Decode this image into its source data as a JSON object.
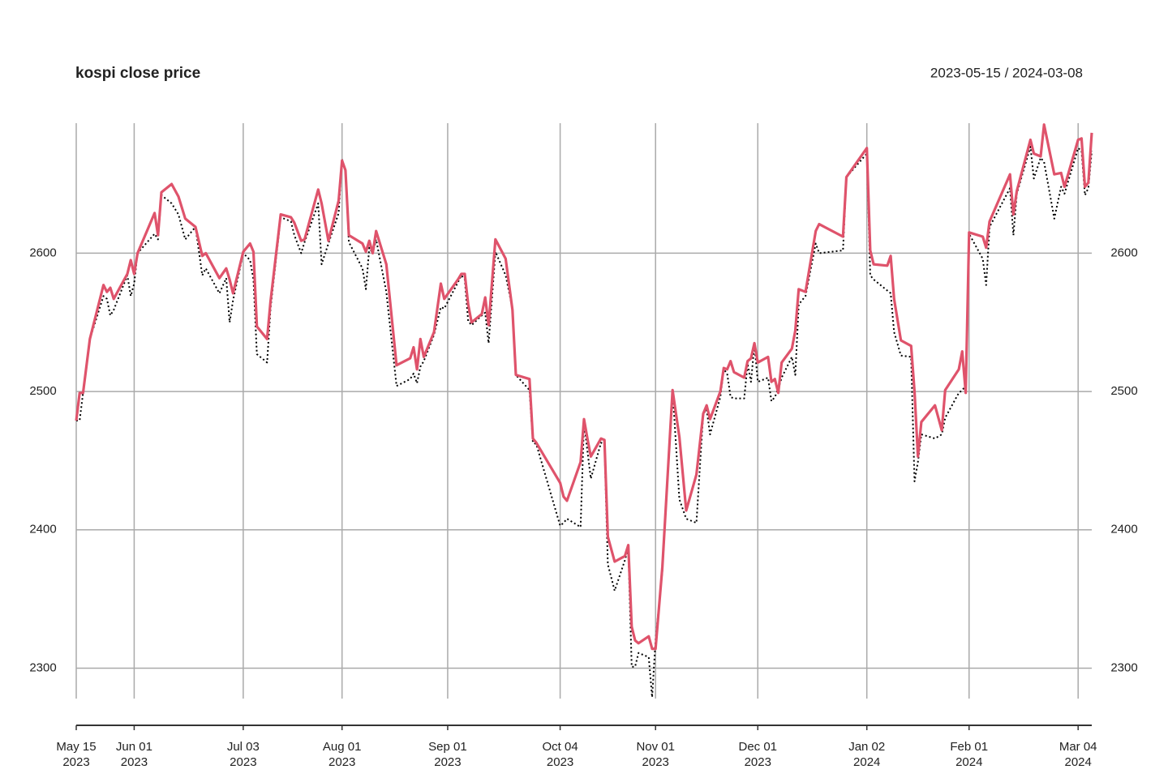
{
  "chart_data": {
    "type": "line",
    "title": "kospi close price",
    "subtitle": "2023-05-15 / 2024-03-08",
    "x": [
      "2023-05-15",
      "2023-05-16",
      "2023-05-17",
      "2023-05-19",
      "2023-05-23",
      "2023-05-24",
      "2023-05-25",
      "2023-05-26",
      "2023-05-30",
      "2023-05-31",
      "2023-06-01",
      "2023-06-02",
      "2023-06-07",
      "2023-06-08",
      "2023-06-09",
      "2023-06-12",
      "2023-06-14",
      "2023-06-16",
      "2023-06-19",
      "2023-06-21",
      "2023-06-22",
      "2023-06-26",
      "2023-06-28",
      "2023-06-29",
      "2023-06-30",
      "2023-07-03",
      "2023-07-05",
      "2023-07-06",
      "2023-07-07",
      "2023-07-10",
      "2023-07-11",
      "2023-07-14",
      "2023-07-17",
      "2023-07-18",
      "2023-07-20",
      "2023-07-21",
      "2023-07-25",
      "2023-07-26",
      "2023-07-28",
      "2023-07-31",
      "2023-08-01",
      "2023-08-02",
      "2023-08-03",
      "2023-08-07",
      "2023-08-08",
      "2023-08-09",
      "2023-08-10",
      "2023-08-11",
      "2023-08-14",
      "2023-08-17",
      "2023-08-21",
      "2023-08-22",
      "2023-08-23",
      "2023-08-24",
      "2023-08-25",
      "2023-08-28",
      "2023-08-30",
      "2023-08-31",
      "2023-09-04",
      "2023-09-05",
      "2023-09-06",
      "2023-09-07",
      "2023-09-08",
      "2023-09-11",
      "2023-09-12",
      "2023-09-13",
      "2023-09-15",
      "2023-09-18",
      "2023-09-20",
      "2023-09-21",
      "2023-09-25",
      "2023-09-26",
      "2023-09-27",
      "2023-10-04",
      "2023-10-05",
      "2023-10-06",
      "2023-10-10",
      "2023-10-11",
      "2023-10-12",
      "2023-10-13",
      "2023-10-16",
      "2023-10-17",
      "2023-10-18",
      "2023-10-20",
      "2023-10-23",
      "2023-10-24",
      "2023-10-25",
      "2023-10-26",
      "2023-10-27",
      "2023-10-30",
      "2023-10-31",
      "2023-11-01",
      "2023-11-03",
      "2023-11-06",
      "2023-11-08",
      "2023-11-10",
      "2023-11-13",
      "2023-11-15",
      "2023-11-16",
      "2023-11-17",
      "2023-11-20",
      "2023-11-21",
      "2023-11-22",
      "2023-11-23",
      "2023-11-24",
      "2023-11-27",
      "2023-11-28",
      "2023-11-29",
      "2023-11-30",
      "2023-12-01",
      "2023-12-04",
      "2023-12-05",
      "2023-12-06",
      "2023-12-07",
      "2023-12-08",
      "2023-12-11",
      "2023-12-12",
      "2023-12-13",
      "2023-12-15",
      "2023-12-18",
      "2023-12-19",
      "2023-12-26",
      "2023-12-27",
      "2024-01-02",
      "2024-01-03",
      "2024-01-04",
      "2024-01-08",
      "2024-01-09",
      "2024-01-10",
      "2024-01-12",
      "2024-01-15",
      "2024-01-16",
      "2024-01-17",
      "2024-01-18",
      "2024-01-22",
      "2024-01-24",
      "2024-01-25",
      "2024-01-29",
      "2024-01-30",
      "2024-01-31",
      "2024-02-01",
      "2024-02-05",
      "2024-02-06",
      "2024-02-07",
      "2024-02-13",
      "2024-02-14",
      "2024-02-15",
      "2024-02-19",
      "2024-02-20",
      "2024-02-22",
      "2024-02-23",
      "2024-02-26",
      "2024-02-28",
      "2024-02-29",
      "2024-03-04",
      "2024-03-05",
      "2024-03-06",
      "2024-03-07",
      "2024-03-08"
    ],
    "series": [
      {
        "color": "#000000",
        "line_style": "dotted",
        "values": [
          2479,
          2479,
          2499,
          2538,
          2569,
          2567,
          2555,
          2559,
          2584,
          2569,
          2578,
          2600,
          2614,
          2610,
          2642,
          2636,
          2628,
          2610,
          2619,
          2584,
          2589,
          2571,
          2582,
          2550,
          2566,
          2600,
          2595,
          2581,
          2527,
          2521,
          2560,
          2626,
          2623,
          2613,
          2600,
          2608,
          2636,
          2592,
          2607,
          2629,
          2668,
          2659,
          2608,
          2589,
          2574,
          2604,
          2600,
          2610,
          2572,
          2504,
          2509,
          2513,
          2506,
          2518,
          2522,
          2541,
          2561,
          2560,
          2579,
          2584,
          2581,
          2551,
          2548,
          2555,
          2557,
          2535,
          2601,
          2584,
          2560,
          2512,
          2501,
          2463,
          2462,
          2403,
          2405,
          2408,
          2402,
          2478,
          2457,
          2437,
          2463,
          2462,
          2375,
          2356,
          2378,
          2387,
          2301,
          2301,
          2311,
          2308,
          2279,
          2320,
          2370,
          2501,
          2422,
          2408,
          2405,
          2484,
          2487,
          2469,
          2496,
          2516,
          2513,
          2496,
          2495,
          2495,
          2520,
          2507,
          2534,
          2507,
          2510,
          2493,
          2496,
          2502,
          2510,
          2525,
          2512,
          2563,
          2569,
          2607,
          2600,
          2602,
          2655,
          2672,
          2584,
          2581,
          2573,
          2571,
          2543,
          2526,
          2525,
          2435,
          2449,
          2469,
          2466,
          2469,
          2481,
          2499,
          2501,
          2504,
          2614,
          2596,
          2577,
          2619,
          2647,
          2613,
          2643,
          2677,
          2654,
          2669,
          2666,
          2625,
          2648,
          2643,
          2676,
          2674,
          2642,
          2647,
          2674
        ]
      },
      {
        "color": "#df536b",
        "line_style": "solid",
        "values": [
          2479,
          2499,
          2499,
          2538,
          2577,
          2572,
          2575,
          2567,
          2585,
          2595,
          2585,
          2600,
          2629,
          2613,
          2644,
          2650,
          2641,
          2625,
          2619,
          2598,
          2600,
          2582,
          2589,
          2581,
          2571,
          2601,
          2607,
          2601,
          2547,
          2538,
          2565,
          2628,
          2626,
          2622,
          2609,
          2610,
          2646,
          2636,
          2609,
          2638,
          2667,
          2660,
          2613,
          2607,
          2601,
          2609,
          2600,
          2616,
          2592,
          2519,
          2524,
          2532,
          2516,
          2538,
          2525,
          2543,
          2578,
          2567,
          2581,
          2585,
          2585,
          2563,
          2550,
          2556,
          2568,
          2548,
          2610,
          2596,
          2559,
          2512,
          2509,
          2466,
          2463,
          2434,
          2424,
          2421,
          2449,
          2480,
          2466,
          2453,
          2466,
          2465,
          2395,
          2377,
          2381,
          2389,
          2330,
          2320,
          2318,
          2323,
          2314,
          2314,
          2373,
          2501,
          2467,
          2414,
          2440,
          2484,
          2490,
          2480,
          2500,
          2517,
          2516,
          2522,
          2514,
          2510,
          2522,
          2524,
          2535,
          2521,
          2525,
          2507,
          2509,
          2499,
          2521,
          2531,
          2544,
          2574,
          2572,
          2616,
          2621,
          2612,
          2655,
          2676,
          2602,
          2592,
          2591,
          2598,
          2567,
          2537,
          2533,
          2500,
          2453,
          2478,
          2490,
          2472,
          2501,
          2516,
          2529,
          2499,
          2615,
          2612,
          2604,
          2623,
          2657,
          2628,
          2645,
          2682,
          2672,
          2670,
          2693,
          2657,
          2658,
          2648,
          2682,
          2683,
          2648,
          2651,
          2687
        ]
      }
    ],
    "xlim": [
      "2023-05-15",
      "2024-03-08"
    ],
    "xticks": [
      {
        "value": "2023-05-15",
        "label": [
          "May 15",
          "2023"
        ]
      },
      {
        "value": "2023-06-01",
        "label": [
          "Jun 01",
          "2023"
        ]
      },
      {
        "value": "2023-07-03",
        "label": [
          "Jul 03",
          "2023"
        ]
      },
      {
        "value": "2023-08-01",
        "label": [
          "Aug 01",
          "2023"
        ]
      },
      {
        "value": "2023-09-01",
        "label": [
          "Sep 01",
          "2023"
        ]
      },
      {
        "value": "2023-10-04",
        "label": [
          "Oct 04",
          "2023"
        ]
      },
      {
        "value": "2023-11-01",
        "label": [
          "Nov 01",
          "2023"
        ]
      },
      {
        "value": "2023-12-01",
        "label": [
          "Dec 01",
          "2023"
        ]
      },
      {
        "value": "2024-01-02",
        "label": [
          "Jan 02",
          "2024"
        ]
      },
      {
        "value": "2024-02-01",
        "label": [
          "Feb 01",
          "2024"
        ]
      },
      {
        "value": "2024-03-04",
        "label": [
          "Mar 04",
          "2024"
        ]
      }
    ],
    "ylim": [
      2278,
      2694
    ],
    "yticks": [
      2300,
      2400,
      2500,
      2600
    ],
    "grid": true
  }
}
